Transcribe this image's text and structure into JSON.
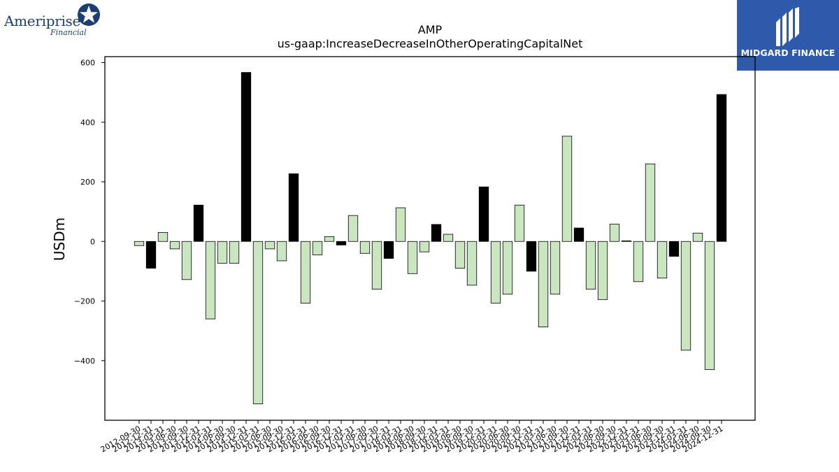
{
  "logos": {
    "left_brand": "Ameriprise",
    "left_sub": "Financial",
    "right_brand": "MIDGARD FINANCE"
  },
  "colors": {
    "positive_fill": "#000000",
    "negative_fill": "#c9e6c0",
    "bar_edge": "#000000",
    "right_logo_bg": "#2f59ab"
  },
  "chart_data": {
    "type": "bar",
    "title": "AMP",
    "subtitle": "us-gaap:IncreaseDecreaseInOtherOperatingCapitalNet",
    "xlabel": "",
    "ylabel": "USDm",
    "ylim": [
      -600,
      620
    ],
    "yticks": [
      -400,
      -200,
      0,
      200,
      400,
      600
    ],
    "grid": false,
    "categories": [
      "2012-09-30",
      "2012-12-31",
      "2013-03-31",
      "2013-06-30",
      "2013-09-30",
      "2013-12-31",
      "2014-03-31",
      "2014-06-30",
      "2014-09-30",
      "2014-12-31",
      "2015-03-31",
      "2015-06-30",
      "2015-09-30",
      "2015-12-31",
      "2016-03-31",
      "2016-06-30",
      "2016-09-30",
      "2016-12-31",
      "2017-03-31",
      "2017-06-30",
      "2017-09-30",
      "2017-12-31",
      "2018-03-31",
      "2018-06-30",
      "2018-09-30",
      "2018-12-31",
      "2019-03-31",
      "2019-06-30",
      "2019-09-30",
      "2019-12-31",
      "2020-03-31",
      "2020-06-30",
      "2020-09-30",
      "2020-12-31",
      "2021-03-31",
      "2021-06-30",
      "2021-09-30",
      "2021-12-31",
      "2022-03-31",
      "2022-06-30",
      "2022-09-30",
      "2022-12-31",
      "2023-03-31",
      "2023-06-30",
      "2023-09-30",
      "2023-12-31",
      "2024-03-31",
      "2024-06-30",
      "2024-09-30",
      "2024-12-31"
    ],
    "values": [
      -14,
      -90,
      30,
      -25,
      -128,
      122,
      -260,
      -73,
      -73,
      567,
      -545,
      -25,
      -65,
      227,
      -207,
      -45,
      16,
      -12,
      87,
      -40,
      -160,
      -57,
      113,
      -108,
      -35,
      57,
      24,
      -90,
      -147,
      183,
      -207,
      -177,
      122,
      -100,
      -287,
      -177,
      353,
      45,
      -160,
      -195,
      58,
      2,
      -135,
      260,
      -123,
      -50,
      -365,
      28,
      -430,
      493
    ],
    "value_colors": [
      "negative_fill",
      "positive_fill",
      "negative_fill",
      "negative_fill",
      "negative_fill",
      "positive_fill",
      "negative_fill",
      "negative_fill",
      "negative_fill",
      "positive_fill",
      "negative_fill",
      "negative_fill",
      "negative_fill",
      "positive_fill",
      "negative_fill",
      "negative_fill",
      "negative_fill",
      "positive_fill",
      "negative_fill",
      "negative_fill",
      "negative_fill",
      "positive_fill",
      "negative_fill",
      "negative_fill",
      "negative_fill",
      "positive_fill",
      "negative_fill",
      "negative_fill",
      "negative_fill",
      "positive_fill",
      "negative_fill",
      "negative_fill",
      "negative_fill",
      "positive_fill",
      "negative_fill",
      "negative_fill",
      "negative_fill",
      "positive_fill",
      "negative_fill",
      "negative_fill",
      "negative_fill",
      "positive_fill",
      "negative_fill",
      "negative_fill",
      "negative_fill",
      "positive_fill",
      "negative_fill",
      "negative_fill",
      "negative_fill",
      "positive_fill"
    ]
  }
}
